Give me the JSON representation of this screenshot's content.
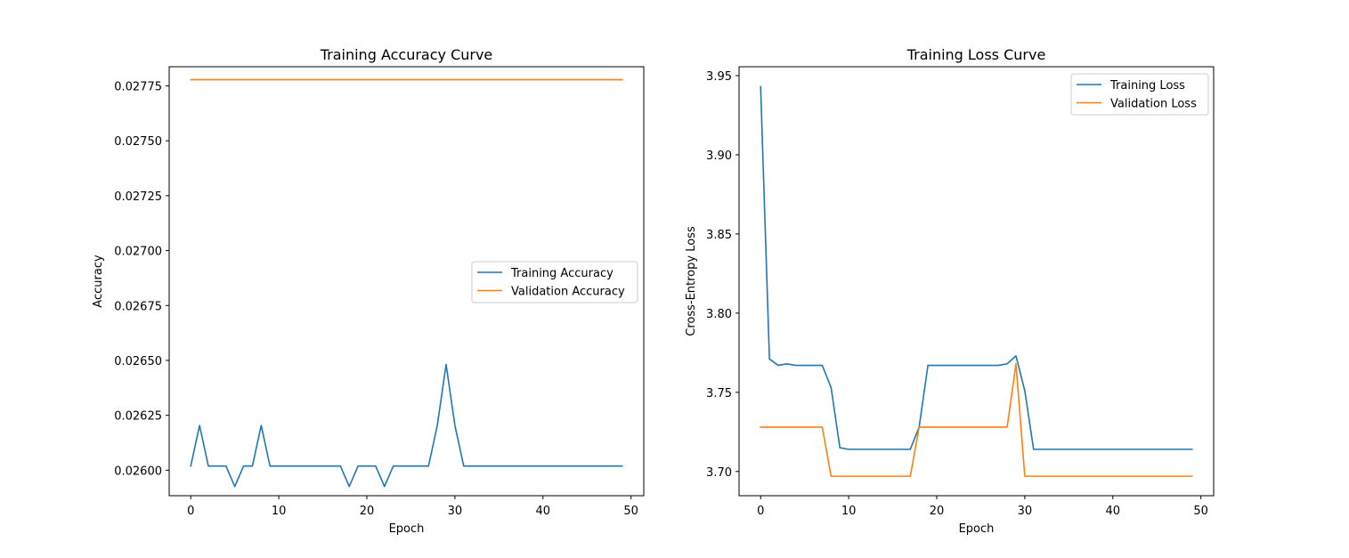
{
  "chart_data": [
    {
      "type": "line",
      "title": "Training Accuracy Curve",
      "xlabel": "Epoch",
      "ylabel": "Accuracy",
      "xlim": [
        -2.45,
        51.45
      ],
      "ylim": [
        0.025884,
        0.027837
      ],
      "xticks": [
        0,
        10,
        20,
        30,
        40,
        50
      ],
      "yticks": [
        0.026,
        0.02625,
        0.0265,
        0.02675,
        0.027,
        0.02725,
        0.0275,
        0.02775
      ],
      "ytick_labels": [
        "0.02600",
        "0.02625",
        "0.02650",
        "0.02675",
        "0.02700",
        "0.02725",
        "0.02750",
        "0.02775"
      ],
      "xtick_labels": [
        "0",
        "10",
        "20",
        "30",
        "40",
        "50"
      ],
      "grid": false,
      "legend_position": "center-right",
      "x": [
        0,
        1,
        2,
        3,
        4,
        5,
        6,
        7,
        8,
        9,
        10,
        11,
        12,
        13,
        14,
        15,
        16,
        17,
        18,
        19,
        20,
        21,
        22,
        23,
        24,
        25,
        26,
        27,
        28,
        29,
        30,
        31,
        32,
        33,
        34,
        35,
        36,
        37,
        38,
        39,
        40,
        41,
        42,
        43,
        44,
        45,
        46,
        47,
        48,
        49
      ],
      "series": [
        {
          "name": "Training Accuracy",
          "color": "#1f77b4",
          "values": [
            0.026019,
            0.026204,
            0.026019,
            0.026019,
            0.026019,
            0.025926,
            0.026019,
            0.026019,
            0.026204,
            0.026019,
            0.026019,
            0.026019,
            0.026019,
            0.026019,
            0.026019,
            0.026019,
            0.026019,
            0.026019,
            0.025926,
            0.026019,
            0.026019,
            0.026019,
            0.025926,
            0.026019,
            0.026019,
            0.026019,
            0.026019,
            0.026019,
            0.026204,
            0.026481,
            0.026204,
            0.026019,
            0.026019,
            0.026019,
            0.026019,
            0.026019,
            0.026019,
            0.026019,
            0.026019,
            0.026019,
            0.026019,
            0.026019,
            0.026019,
            0.026019,
            0.026019,
            0.026019,
            0.026019,
            0.026019,
            0.026019,
            0.026019
          ]
        },
        {
          "name": "Validation Accuracy",
          "color": "#ff7f0e",
          "values": [
            0.027778,
            0.027778,
            0.027778,
            0.027778,
            0.027778,
            0.027778,
            0.027778,
            0.027778,
            0.027778,
            0.027778,
            0.027778,
            0.027778,
            0.027778,
            0.027778,
            0.027778,
            0.027778,
            0.027778,
            0.027778,
            0.027778,
            0.027778,
            0.027778,
            0.027778,
            0.027778,
            0.027778,
            0.027778,
            0.027778,
            0.027778,
            0.027778,
            0.027778,
            0.027778,
            0.027778,
            0.027778,
            0.027778,
            0.027778,
            0.027778,
            0.027778,
            0.027778,
            0.027778,
            0.027778,
            0.027778,
            0.027778,
            0.027778,
            0.027778,
            0.027778,
            0.027778,
            0.027778,
            0.027778,
            0.027778,
            0.027778,
            0.027778
          ]
        }
      ]
    },
    {
      "type": "line",
      "title": "Training Loss Curve",
      "xlabel": "Epoch",
      "ylabel": "Cross-Entropy Loss",
      "xlim": [
        -2.45,
        51.45
      ],
      "ylim": [
        3.6847,
        3.9556
      ],
      "xticks": [
        0,
        10,
        20,
        30,
        40,
        50
      ],
      "yticks": [
        3.7,
        3.75,
        3.8,
        3.85,
        3.9,
        3.95
      ],
      "ytick_labels": [
        "3.70",
        "3.75",
        "3.80",
        "3.85",
        "3.90",
        "3.95"
      ],
      "xtick_labels": [
        "0",
        "10",
        "20",
        "30",
        "40",
        "50"
      ],
      "grid": false,
      "legend_position": "top-right",
      "x": [
        0,
        1,
        2,
        3,
        4,
        5,
        6,
        7,
        8,
        9,
        10,
        11,
        12,
        13,
        14,
        15,
        16,
        17,
        18,
        19,
        20,
        21,
        22,
        23,
        24,
        25,
        26,
        27,
        28,
        29,
        30,
        31,
        32,
        33,
        34,
        35,
        36,
        37,
        38,
        39,
        40,
        41,
        42,
        43,
        44,
        45,
        46,
        47,
        48,
        49
      ],
      "series": [
        {
          "name": "Training Loss",
          "color": "#1f77b4",
          "values": [
            3.943,
            3.771,
            3.767,
            3.768,
            3.767,
            3.767,
            3.767,
            3.767,
            3.753,
            3.715,
            3.714,
            3.714,
            3.714,
            3.714,
            3.714,
            3.714,
            3.714,
            3.714,
            3.728,
            3.767,
            3.767,
            3.767,
            3.767,
            3.767,
            3.767,
            3.767,
            3.767,
            3.767,
            3.768,
            3.773,
            3.751,
            3.714,
            3.714,
            3.714,
            3.714,
            3.714,
            3.714,
            3.714,
            3.714,
            3.714,
            3.714,
            3.714,
            3.714,
            3.714,
            3.714,
            3.714,
            3.714,
            3.714,
            3.714,
            3.714
          ]
        },
        {
          "name": "Validation Loss",
          "color": "#ff7f0e",
          "values": [
            3.728,
            3.728,
            3.728,
            3.728,
            3.728,
            3.728,
            3.728,
            3.728,
            3.697,
            3.697,
            3.697,
            3.697,
            3.697,
            3.697,
            3.697,
            3.697,
            3.697,
            3.697,
            3.728,
            3.728,
            3.728,
            3.728,
            3.728,
            3.728,
            3.728,
            3.728,
            3.728,
            3.728,
            3.728,
            3.768,
            3.697,
            3.697,
            3.697,
            3.697,
            3.697,
            3.697,
            3.697,
            3.697,
            3.697,
            3.697,
            3.697,
            3.697,
            3.697,
            3.697,
            3.697,
            3.697,
            3.697,
            3.697,
            3.697,
            3.697
          ]
        }
      ]
    }
  ]
}
